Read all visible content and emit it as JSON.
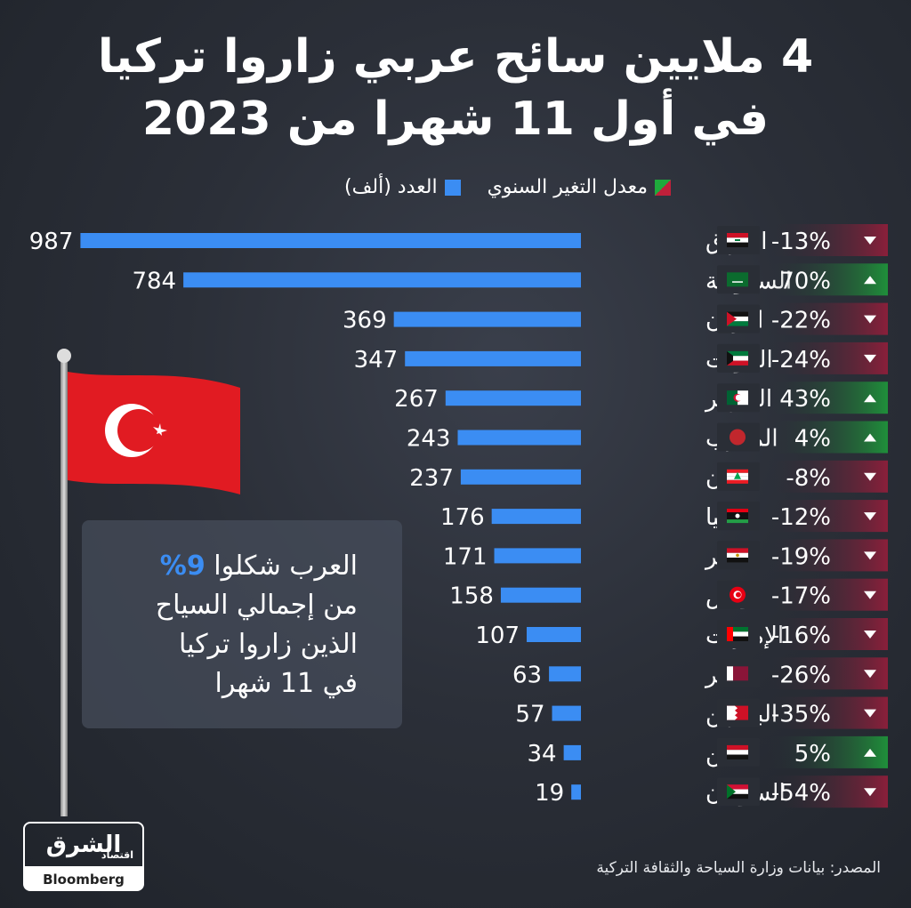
{
  "title": {
    "line1": "4 ملايين سائح عربي زاروا تركيا",
    "line2": "في أول 11 شهرا من 2023"
  },
  "legend": {
    "rate_label": "معدل التغير السنوي",
    "count_label": "العدد (ألف)"
  },
  "info_box": {
    "line1_prefix": "العرب شكلوا",
    "line1_pct": "9%",
    "line2": "من إجمالي السياح",
    "line3": "الذين زاروا تركيا",
    "line4": "في 11 شهرا"
  },
  "source": "المصدر: بيانات وزارة السياحة والثقافة التركية",
  "logo": {
    "main": "الشرق",
    "sub": "اقتصاد",
    "bloomberg": "Bloomberg"
  },
  "colors": {
    "bar": "#3b8df3",
    "up": "#1f8f3a",
    "down": "#8a1f3a"
  },
  "chart_data": {
    "type": "bar",
    "orientation": "horizontal",
    "categories": [
      "العراق",
      "السعودية",
      "الأردن",
      "الكويت",
      "الجزائر",
      "المغرب",
      "لبنان",
      "ليبيا",
      "مصر",
      "تونس",
      "الإمارات",
      "قطر",
      "البحرين",
      "اليمن",
      "السودان"
    ],
    "series": [
      {
        "name": "العدد (ألف)",
        "values": [
          987,
          784,
          369,
          347,
          267,
          243,
          237,
          176,
          171,
          158,
          107,
          63,
          57,
          34,
          19
        ]
      },
      {
        "name": "معدل التغير السنوي",
        "values": [
          "-13%",
          "70%",
          "-22%",
          "-24%",
          "43%",
          "4%",
          "-8%",
          "-12%",
          "-19%",
          "-17%",
          "-16%",
          "-26%",
          "-35%",
          "5%",
          "-54%"
        ]
      }
    ],
    "change_direction": [
      "down",
      "up",
      "down",
      "down",
      "up",
      "up",
      "down",
      "down",
      "down",
      "down",
      "down",
      "down",
      "down",
      "up",
      "down"
    ],
    "flags": [
      "iraq",
      "saudi",
      "jordan",
      "kuwait",
      "algeria",
      "morocco",
      "lebanon",
      "libya",
      "egypt",
      "tunisia",
      "uae",
      "qatar",
      "bahrain",
      "yemen",
      "sudan"
    ]
  }
}
